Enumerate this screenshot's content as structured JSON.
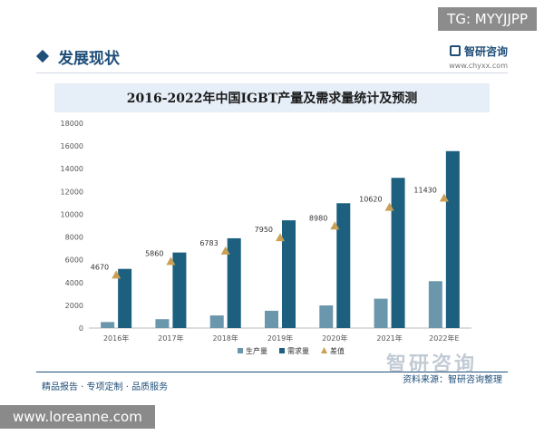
{
  "badge_top": "TG: MYYJJPP",
  "header": {
    "title": "发展现状",
    "brand_name": "智研咨询",
    "brand_url": "www.chyxx.com"
  },
  "chart_data": {
    "type": "bar",
    "title": "2016-2022年中国IGBT产量及需求量统计及预测",
    "categories": [
      "2016年",
      "2017年",
      "2018年",
      "2019年",
      "2020年",
      "2021年",
      "2022年E"
    ],
    "series": [
      {
        "name": "生产量",
        "color": "#6b97ad",
        "values": [
          530,
          780,
          1110,
          1520,
          1990,
          2580,
          4120
        ]
      },
      {
        "name": "需求量",
        "color": "#1c5f7e",
        "values": [
          5200,
          6640,
          7890,
          9470,
          10970,
          13200,
          15550
        ]
      }
    ],
    "markers": {
      "name": "差值",
      "color": "#c9a055",
      "values": [
        4670,
        5860,
        6783,
        7950,
        8980,
        10620,
        11430
      ]
    },
    "ylim": [
      0,
      18000
    ],
    "yticks": [
      0,
      2000,
      4000,
      6000,
      8000,
      10000,
      12000,
      14000,
      16000,
      18000
    ],
    "legend_position": "bottom",
    "grid": false
  },
  "footer": {
    "left": "精品报告 · 专项定制 · 品质服务",
    "source": "资料来源：智研咨询整理",
    "watermark": "智研咨询"
  },
  "badge_bottom": "www.loreanne.com"
}
